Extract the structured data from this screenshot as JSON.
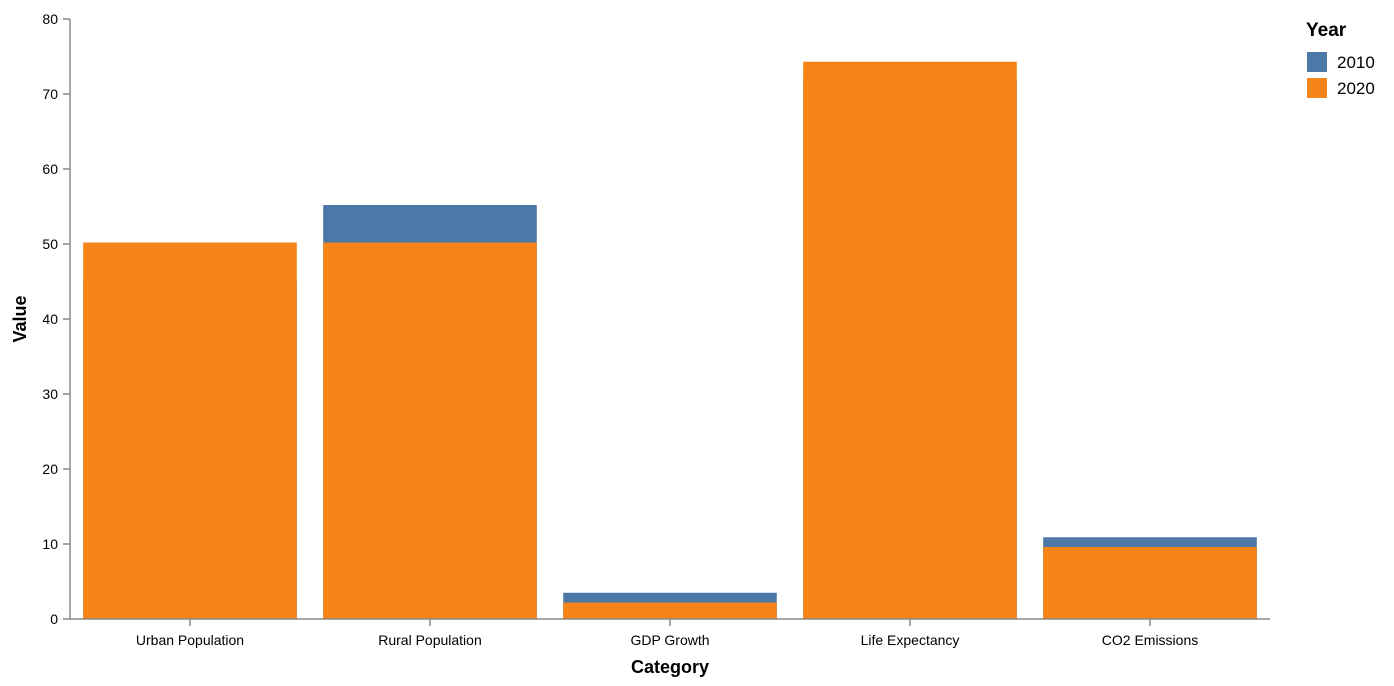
{
  "chart_data": {
    "type": "bar",
    "layering": "overlaid",
    "categories": [
      "Urban Population",
      "Rural Population",
      "GDP Growth",
      "Life Expectancy",
      "CO2 Emissions"
    ],
    "series": [
      {
        "name": "2010",
        "color": "#4c78a8",
        "values": [
          45,
          55.2,
          3.5,
          72,
          10.9
        ]
      },
      {
        "name": "2020",
        "color": "#f58518",
        "values": [
          50.2,
          50.2,
          2.2,
          74.3,
          9.6
        ]
      }
    ],
    "xlabel": "Category",
    "ylabel": "Value",
    "ylim": [
      0,
      80
    ],
    "yticks": [
      0,
      10,
      20,
      30,
      40,
      50,
      60,
      70,
      80
    ],
    "grid": false,
    "legend": {
      "title": "Year",
      "position": "top-right"
    }
  }
}
